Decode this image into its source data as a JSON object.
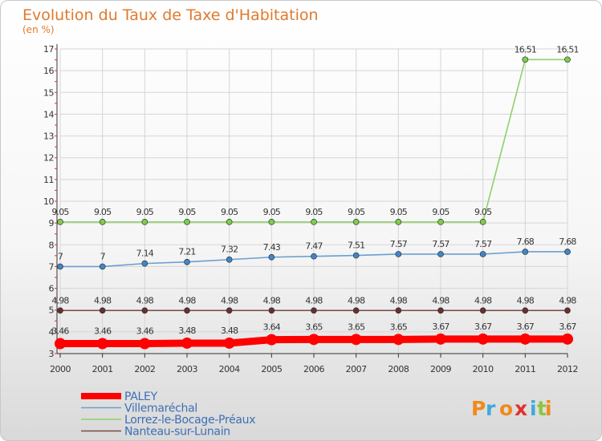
{
  "header": {
    "title": "Evolution du Taux de Taxe d'Habitation",
    "unit": "(en %)"
  },
  "logo": {
    "letters": [
      "P",
      "r",
      "o",
      "x",
      "i",
      "t",
      "i"
    ]
  },
  "colors": {
    "title": "#e07a2e",
    "grid": "#d5d5d5",
    "axis": "#333333",
    "tick_marks": "#e03030"
  },
  "chart_data": {
    "type": "line",
    "x": [
      "2000",
      "2001",
      "2002",
      "2003",
      "2004",
      "2005",
      "2006",
      "2007",
      "2008",
      "2009",
      "2010",
      "2011",
      "2012"
    ],
    "ylim": [
      3,
      17
    ],
    "yticks": [
      3,
      4,
      5,
      6,
      7,
      8,
      9,
      10,
      11,
      12,
      13,
      14,
      15,
      16,
      17
    ],
    "grid": true,
    "legend_position": "bottom-left",
    "series": [
      {
        "name": "PALEY",
        "color": "#ff0000",
        "marker_color": "#ff0000",
        "line_style": "thick",
        "values": [
          3.46,
          3.46,
          3.46,
          3.48,
          3.48,
          3.64,
          3.65,
          3.65,
          3.65,
          3.67,
          3.67,
          3.67,
          3.67
        ],
        "labels": [
          "3.46",
          "3.46",
          "3.46",
          "3.48",
          "3.48",
          "3.64",
          "3.65",
          "3.65",
          "3.65",
          "3.67",
          "3.67",
          "3.67",
          "3.67"
        ]
      },
      {
        "name": "Villemaréchal",
        "color": "#6a9fd0",
        "marker_color": "#3f86cc",
        "line_style": "thin",
        "values": [
          7,
          7,
          7.14,
          7.21,
          7.32,
          7.43,
          7.47,
          7.51,
          7.57,
          7.57,
          7.57,
          7.68,
          7.68
        ],
        "labels": [
          "7",
          "7",
          "7.14",
          "7.21",
          "7.32",
          "7.43",
          "7.47",
          "7.51",
          "7.57",
          "7.57",
          "7.57",
          "7.68",
          "7.68"
        ]
      },
      {
        "name": "Lorrez-le-Bocage-Préaux",
        "color": "#8fd16a",
        "marker_color": "#7ccf4a",
        "line_style": "thin",
        "values": [
          9.05,
          9.05,
          9.05,
          9.05,
          9.05,
          9.05,
          9.05,
          9.05,
          9.05,
          9.05,
          9.05,
          16.51,
          16.51
        ],
        "labels": [
          "9.05",
          "9.05",
          "9.05",
          "9.05",
          "9.05",
          "9.05",
          "9.05",
          "9.05",
          "9.05",
          "9.05",
          "9.05",
          "16.51",
          "16.51"
        ]
      },
      {
        "name": "Nanteau-sur-Lunain",
        "color": "#7a4a4a",
        "marker_color": "#6a2e2e",
        "line_style": "thin",
        "values": [
          4.98,
          4.98,
          4.98,
          4.98,
          4.98,
          4.98,
          4.98,
          4.98,
          4.98,
          4.98,
          4.98,
          4.98,
          4.98
        ],
        "labels": [
          "4.98",
          "4.98",
          "4.98",
          "4.98",
          "4.98",
          "4.98",
          "4.98",
          "4.98",
          "4.98",
          "4.98",
          "4.98",
          "4.98",
          "4.98"
        ]
      }
    ]
  }
}
